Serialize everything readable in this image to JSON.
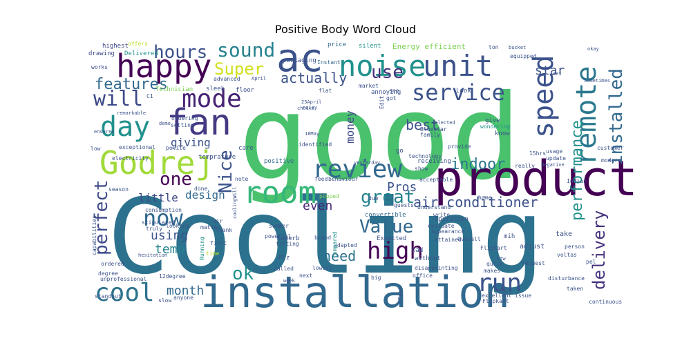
{
  "chart_data": {
    "type": "wordcloud",
    "title": "Positive Body Word Cloud",
    "colormap": "viridis",
    "background": "#ffffff",
    "words": [
      {
        "text": "Cooling",
        "color": "#2c728e"
      },
      {
        "text": "good",
        "color": "#4ac16d"
      },
      {
        "text": "product",
        "color": "#440154"
      },
      {
        "text": "installation",
        "color": "#31688e"
      },
      {
        "text": "ac",
        "color": "#3b528b"
      },
      {
        "text": "noise",
        "color": "#21918c"
      },
      {
        "text": "unit",
        "color": "#3b528b"
      },
      {
        "text": "happy",
        "color": "#440154"
      },
      {
        "text": "review",
        "color": "#31688e"
      },
      {
        "text": "room",
        "color": "#35b779"
      },
      {
        "text": "Godrej",
        "color": "#a0da39"
      },
      {
        "text": "fan",
        "color": "#443983"
      },
      {
        "text": "day",
        "color": "#21918c"
      },
      {
        "text": "speed",
        "color": "#3b528b"
      },
      {
        "text": "remote",
        "color": "#2a788e"
      },
      {
        "text": "service",
        "color": "#3b528b"
      },
      {
        "text": "mode",
        "color": "#482475"
      },
      {
        "text": "cool",
        "color": "#2c728e"
      },
      {
        "text": "run",
        "color": "#3b528b"
      },
      {
        "text": "high",
        "color": "#440154"
      },
      {
        "text": "installed",
        "color": "#31688e"
      },
      {
        "text": "performance",
        "color": "#21918c"
      },
      {
        "text": "delivery",
        "color": "#46327e"
      },
      {
        "text": "indoor",
        "color": "#2a788e"
      },
      {
        "text": "air conditioner",
        "color": "#3b528b"
      },
      {
        "text": "sound",
        "color": "#26828e"
      },
      {
        "text": "hours",
        "color": "#3b528b"
      },
      {
        "text": "Super",
        "color": "#d0e11c"
      },
      {
        "text": "use",
        "color": "#46327e"
      },
      {
        "text": "will",
        "color": "#3e4989"
      },
      {
        "text": "features",
        "color": "#31688e"
      },
      {
        "text": "now",
        "color": "#31688e"
      },
      {
        "text": "one",
        "color": "#440154"
      },
      {
        "text": "Nice",
        "color": "#3b528b"
      },
      {
        "text": "great",
        "color": "#26828e"
      },
      {
        "text": "Value",
        "color": "#31688e"
      },
      {
        "text": "perfect",
        "color": "#3e4989"
      },
      {
        "text": "ok",
        "color": "#21918c"
      },
      {
        "text": "star",
        "color": "#3b528b"
      },
      {
        "text": "actually",
        "color": "#3b528b"
      },
      {
        "text": "best",
        "color": "#3b528b"
      },
      {
        "text": "money",
        "color": "#3e4989"
      },
      {
        "text": "Pros",
        "color": "#3b528b"
      },
      {
        "text": "even",
        "color": "#482475"
      },
      {
        "text": "need",
        "color": "#2c728e"
      },
      {
        "text": "month",
        "color": "#31688e"
      },
      {
        "text": "temp",
        "color": "#26828e"
      },
      {
        "text": "using",
        "color": "#3b528b"
      },
      {
        "text": "design",
        "color": "#31688e"
      },
      {
        "text": "little",
        "color": "#3e4989"
      },
      {
        "text": "giving",
        "color": "#3b528b"
      },
      {
        "text": "Energy efficient",
        "color": "#7ad151"
      },
      {
        "text": "Delivered",
        "color": "#21918c"
      },
      {
        "text": "highest",
        "color": "#3e4989"
      },
      {
        "text": "offers",
        "color": "#b5de2b"
      },
      {
        "text": "drawing",
        "color": "#3e4989"
      },
      {
        "text": "works",
        "color": "#3e4989"
      },
      {
        "text": "packaging",
        "color": "#3b528b"
      },
      {
        "text": "price",
        "color": "#31688e"
      },
      {
        "text": "silent",
        "color": "#21918c"
      },
      {
        "text": "Instant",
        "color": "#31688e"
      },
      {
        "text": "Technician",
        "color": "#7ad151"
      },
      {
        "text": "advanced",
        "color": "#3b528b"
      },
      {
        "text": "sleek",
        "color": "#3b528b"
      },
      {
        "text": "floor",
        "color": "#3b528b"
      },
      {
        "text": "annoying",
        "color": "#3b528b"
      },
      {
        "text": "market",
        "color": "#3b528b"
      },
      {
        "text": "flat",
        "color": "#3b528b"
      },
      {
        "text": "see",
        "color": "#3b528b"
      },
      {
        "text": "got",
        "color": "#3b528b"
      },
      {
        "text": "Look",
        "color": "#3b528b"
      },
      {
        "text": "give",
        "color": "#3b528b"
      },
      {
        "text": "know",
        "color": "#3b528b"
      },
      {
        "text": "wondering",
        "color": "#21918c"
      },
      {
        "text": "Bluestar",
        "color": "#3b528b"
      },
      {
        "text": "family",
        "color": "#3b528b"
      },
      {
        "text": "receiving",
        "color": "#3b528b"
      },
      {
        "text": "provide",
        "color": "#3b528b"
      },
      {
        "text": "temprature",
        "color": "#3b528b"
      },
      {
        "text": "care",
        "color": "#3b528b"
      },
      {
        "text": "positive",
        "color": "#31688e"
      },
      {
        "text": "go",
        "color": "#3b528b"
      },
      {
        "text": "technology",
        "color": "#3b528b"
      },
      {
        "text": "show",
        "color": "#3b528b"
      },
      {
        "text": "acceptable",
        "color": "#3b528b"
      },
      {
        "text": "customer",
        "color": "#3b528b"
      },
      {
        "text": "modern",
        "color": "#3b528b"
      },
      {
        "text": "usage",
        "color": "#3b528b"
      },
      {
        "text": "update",
        "color": "#3b528b"
      },
      {
        "text": "really",
        "color": "#3b528b"
      },
      {
        "text": "Indian",
        "color": "#3b528b"
      },
      {
        "text": "exceptional",
        "color": "#3b528b"
      },
      {
        "text": "polite",
        "color": "#3b528b"
      },
      {
        "text": "electricity",
        "color": "#3b528b"
      },
      {
        "text": "low",
        "color": "#3b528b"
      },
      {
        "text": "setting",
        "color": "#3b528b"
      },
      {
        "text": "ordering",
        "color": "#3b528b"
      },
      {
        "text": "consumption",
        "color": "#3b528b"
      },
      {
        "text": "stipulated",
        "color": "#3b528b"
      },
      {
        "text": "note",
        "color": "#3b528b"
      },
      {
        "text": "done",
        "color": "#3b528b"
      },
      {
        "text": "thank",
        "color": "#3b528b"
      },
      {
        "text": "feed",
        "color": "#3b528b"
      },
      {
        "text": "behaviour",
        "color": "#3b528b"
      },
      {
        "text": "convertible",
        "color": "#31688e"
      },
      {
        "text": "operation",
        "color": "#3b528b"
      },
      {
        "text": "write",
        "color": "#3b528b"
      },
      {
        "text": "home",
        "color": "#3b528b"
      },
      {
        "text": "understand",
        "color": "#3b528b"
      },
      {
        "text": "guests",
        "color": "#3b528b"
      },
      {
        "text": "due",
        "color": "#3b528b"
      },
      {
        "text": "popped",
        "color": "#7ad151"
      },
      {
        "text": "summer",
        "color": "#3b528b"
      },
      {
        "text": "powerful",
        "color": "#3b528b"
      },
      {
        "text": "air",
        "color": "#3b528b"
      },
      {
        "text": "matter",
        "color": "#3b528b"
      },
      {
        "text": "first",
        "color": "#3b528b"
      },
      {
        "text": "Running",
        "color": "#21918c"
      },
      {
        "text": "time",
        "color": "#b5de2b"
      },
      {
        "text": "Superb",
        "color": "#3b528b"
      },
      {
        "text": "fitting",
        "color": "#3b528b"
      },
      {
        "text": "Expected",
        "color": "#3b528b"
      },
      {
        "text": "appearance",
        "color": "#3b528b"
      },
      {
        "text": "attained",
        "color": "#3b528b"
      },
      {
        "text": "evaluate",
        "color": "#3b528b"
      },
      {
        "text": "mih",
        "color": "#3b528b"
      },
      {
        "text": "adjust",
        "color": "#3b528b"
      },
      {
        "text": "take",
        "color": "#3b528b"
      },
      {
        "text": "Overall",
        "color": "#3b528b"
      },
      {
        "text": "Flipkart",
        "color": "#3b528b"
      },
      {
        "text": "bad",
        "color": "#3b528b"
      },
      {
        "text": "without",
        "color": "#3b528b"
      },
      {
        "text": "Plz",
        "color": "#3b528b"
      },
      {
        "text": "lowest",
        "color": "#3b528b"
      },
      {
        "text": "adapted",
        "color": "#3b528b"
      },
      {
        "text": "brand",
        "color": "#3b528b"
      },
      {
        "text": "compared",
        "color": "#21918c"
      },
      {
        "text": "makes",
        "color": "#3b528b"
      },
      {
        "text": "quick",
        "color": "#3b528b"
      },
      {
        "text": "btw",
        "color": "#3b528b"
      },
      {
        "text": "request",
        "color": "#3b528b"
      },
      {
        "text": "person",
        "color": "#3b528b"
      },
      {
        "text": "voltas",
        "color": "#3b528b"
      },
      {
        "text": "pel",
        "color": "#3b528b"
      },
      {
        "text": "disturbance",
        "color": "#3b528b"
      },
      {
        "text": "taken",
        "color": "#3b528b"
      },
      {
        "text": "continuous",
        "color": "#3b528b"
      },
      {
        "text": "Flipkart",
        "color": "#3b528b"
      },
      {
        "text": "excellent",
        "color": "#3b528b"
      },
      {
        "text": "till",
        "color": "#3b528b"
      },
      {
        "text": "issue",
        "color": "#3b528b"
      },
      {
        "text": "office",
        "color": "#3b528b"
      },
      {
        "text": "disappointing",
        "color": "#3b528b"
      },
      {
        "text": "big",
        "color": "#3b528b"
      },
      {
        "text": "next",
        "color": "#3b528b"
      },
      {
        "text": "week",
        "color": "#3b528b"
      },
      {
        "text": "called",
        "color": "#3b528b"
      },
      {
        "text": "Fast",
        "color": "#3b528b"
      },
      {
        "text": "degree",
        "color": "#3b528b"
      },
      {
        "text": "12degree",
        "color": "#3b528b"
      },
      {
        "text": "unprofessional",
        "color": "#3b528b"
      },
      {
        "text": "standout",
        "color": "#3b528b"
      },
      {
        "text": "slow",
        "color": "#3b528b"
      },
      {
        "text": "anyone",
        "color": "#3b528b"
      },
      {
        "text": "ordered",
        "color": "#3b528b"
      },
      {
        "text": "truly",
        "color": "#3b528b"
      },
      {
        "text": "looking",
        "color": "#3b528b"
      },
      {
        "text": "season",
        "color": "#3b528b"
      },
      {
        "text": "capabilities",
        "color": "#3b528b"
      },
      {
        "text": "hesitation",
        "color": "#3b528b"
      },
      {
        "text": "remarkable",
        "color": "#3b528b"
      },
      {
        "text": "demo",
        "color": "#3b528b"
      },
      {
        "text": "ensures",
        "color": "#3b528b"
      },
      {
        "text": "identified",
        "color": "#3b528b"
      },
      {
        "text": "18May",
        "color": "#3b528b"
      },
      {
        "text": "25April",
        "color": "#3b528b"
      },
      {
        "text": "April",
        "color": "#3b528b"
      },
      {
        "text": "noisy",
        "color": "#3b528b"
      },
      {
        "text": "selected",
        "color": "#3b528b"
      },
      {
        "text": "Edit",
        "color": "#3b528b"
      },
      {
        "text": "C1",
        "color": "#3b528b"
      },
      {
        "text": "equipped",
        "color": "#3b528b"
      },
      {
        "text": "ton",
        "color": "#3b528b"
      },
      {
        "text": "bucket",
        "color": "#3b528b"
      },
      {
        "text": "okay",
        "color": "#3b528b"
      },
      {
        "text": "set",
        "color": "#3b528b"
      },
      {
        "text": "Sometimes",
        "color": "#3b528b"
      },
      {
        "text": "15hrs",
        "color": "#3b528b"
      },
      {
        "text": "Negative",
        "color": "#3b528b"
      },
      {
        "text": "yesterday",
        "color": "#3b528b"
      },
      {
        "text": "choice",
        "color": "#3b528b"
      },
      {
        "text": "coolingWill",
        "color": "#3b528b"
      }
    ]
  }
}
